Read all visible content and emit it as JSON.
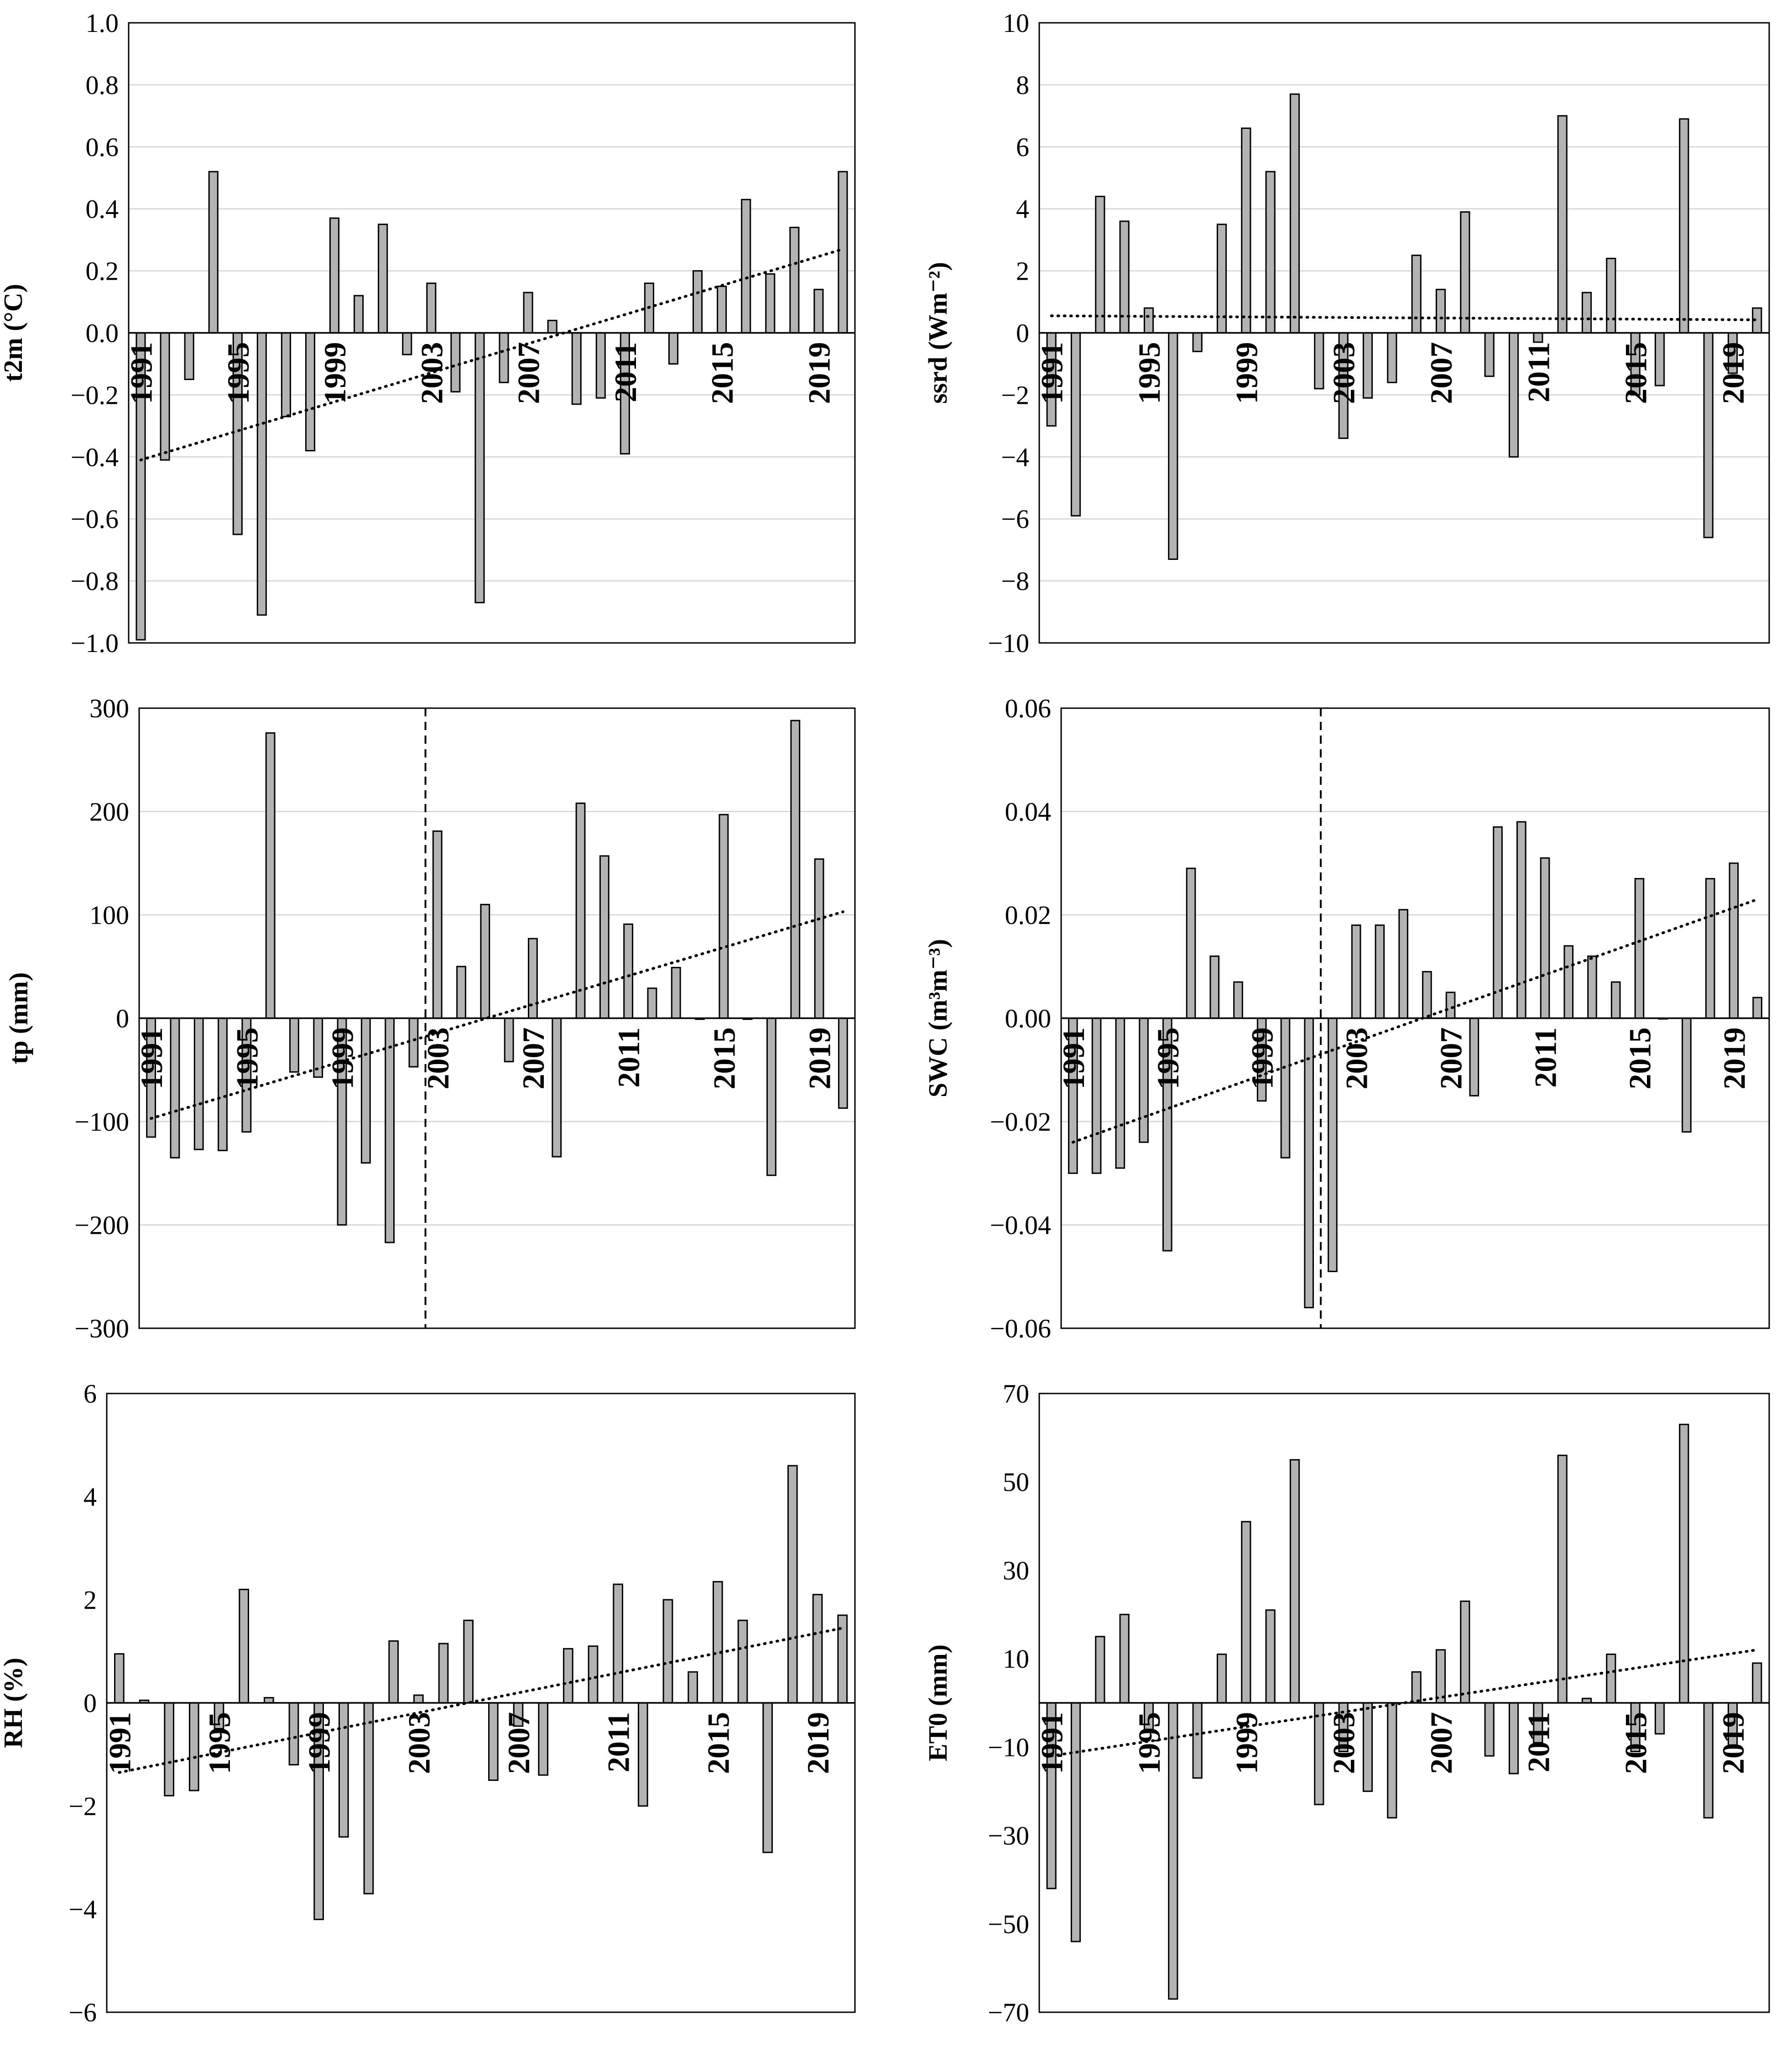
{
  "figure": {
    "colors": {
      "bar_fill": "#b3b3b3",
      "bar_stroke": "#000000",
      "gridline": "#d9d9d9",
      "frame": "#000000",
      "trend": "#000000"
    }
  },
  "chart_data": [
    {
      "id": "t2m",
      "type": "bar",
      "ylabel": "t2m (°C)",
      "ylim": [
        -1.0,
        1.0
      ],
      "yticks": [
        -1.0,
        -0.8,
        -0.6,
        -0.4,
        -0.2,
        0.0,
        0.2,
        0.4,
        0.6,
        0.8,
        1.0
      ],
      "ytick_labels": [
        "−1.0",
        "−0.8",
        "−0.6",
        "−0.4",
        "−0.2",
        "0.0",
        "0.2",
        "0.4",
        "0.6",
        "0.8",
        "1.0"
      ],
      "grid": true,
      "x": [
        1991,
        1992,
        1993,
        1994,
        1995,
        1996,
        1997,
        1998,
        1999,
        2000,
        2001,
        2002,
        2003,
        2004,
        2005,
        2006,
        2007,
        2008,
        2009,
        2010,
        2011,
        2012,
        2013,
        2014,
        2015,
        2016,
        2017,
        2018,
        2019,
        2020
      ],
      "x_tick_labels": [
        "1991",
        "1995",
        "1999",
        "2003",
        "2007",
        "2011",
        "2015",
        "2019"
      ],
      "x_tick_years": [
        1991,
        1995,
        1999,
        2003,
        2007,
        2011,
        2015,
        2019
      ],
      "values": [
        -0.99,
        -0.41,
        -0.15,
        0.52,
        -0.65,
        -0.91,
        -0.27,
        -0.38,
        0.37,
        0.12,
        0.35,
        -0.07,
        0.16,
        -0.19,
        -0.87,
        -0.16,
        0.13,
        0.04,
        -0.23,
        -0.21,
        -0.39,
        0.16,
        -0.1,
        0.2,
        0.15,
        0.43,
        0.19,
        0.34,
        0.14,
        0.52
      ],
      "trend": [
        -0.41,
        0.27
      ]
    },
    {
      "id": "ssrd",
      "type": "bar",
      "ylabel": "ssrd (Wm⁻²)",
      "ylim": [
        -10,
        10
      ],
      "yticks": [
        -10,
        -8,
        -6,
        -4,
        -2,
        0,
        2,
        4,
        6,
        8,
        10
      ],
      "ytick_labels": [
        "−10",
        "−8",
        "−6",
        "−4",
        "−2",
        "0",
        "2",
        "4",
        "6",
        "8",
        "10"
      ],
      "grid": true,
      "x": [
        1991,
        1992,
        1993,
        1994,
        1995,
        1996,
        1997,
        1998,
        1999,
        2000,
        2001,
        2002,
        2003,
        2004,
        2005,
        2006,
        2007,
        2008,
        2009,
        2010,
        2011,
        2012,
        2013,
        2014,
        2015,
        2016,
        2017,
        2018,
        2019,
        2020
      ],
      "x_tick_labels": [
        "1991",
        "1995",
        "1999",
        "2003",
        "2007",
        "2011",
        "2015",
        "2019"
      ],
      "x_tick_years": [
        1991,
        1995,
        1999,
        2003,
        2007,
        2011,
        2015,
        2019
      ],
      "values": [
        -3.0,
        -5.9,
        4.4,
        3.6,
        0.8,
        -7.3,
        -0.6,
        3.5,
        6.6,
        5.2,
        7.7,
        -1.8,
        -3.4,
        -2.1,
        -1.6,
        2.5,
        1.4,
        3.9,
        -1.4,
        -4.0,
        -0.3,
        7.0,
        1.3,
        2.4,
        -2.0,
        -1.7,
        6.9,
        -6.6,
        -1.3,
        0.8
      ],
      "trend": [
        0.55,
        0.42
      ]
    },
    {
      "id": "tp",
      "type": "bar",
      "ylabel": "tp (mm)",
      "ylim": [
        -300,
        300
      ],
      "yticks": [
        -300,
        -200,
        -100,
        0,
        100,
        200,
        300
      ],
      "ytick_labels": [
        "−300",
        "−200",
        "−100",
        "0",
        "100",
        "200",
        "300"
      ],
      "grid": true,
      "x": [
        1991,
        1992,
        1993,
        1994,
        1995,
        1996,
        1997,
        1998,
        1999,
        2000,
        2001,
        2002,
        2003,
        2004,
        2005,
        2006,
        2007,
        2008,
        2009,
        2010,
        2011,
        2012,
        2013,
        2014,
        2015,
        2016,
        2017,
        2018,
        2019,
        2020
      ],
      "x_tick_labels": [
        "1991",
        "1995",
        "1999",
        "2003",
        "2007",
        "2011",
        "2015",
        "2019"
      ],
      "x_tick_years": [
        1991,
        1995,
        1999,
        2003,
        2007,
        2011,
        2015,
        2019
      ],
      "values": [
        -115,
        -135,
        -127,
        -128,
        -110,
        276,
        -52,
        -57,
        -200,
        -140,
        -217,
        -47,
        181,
        50,
        110,
        -42,
        77,
        -134,
        208,
        157,
        91,
        29,
        49,
        -1,
        197,
        -1,
        -152,
        288,
        154,
        -87
      ],
      "trend": [
        -97,
        103
      ],
      "breakpoint_year": 2002.5
    },
    {
      "id": "swc",
      "type": "bar",
      "ylabel": "SWC (m³m⁻³)",
      "ylim": [
        -0.06,
        0.06
      ],
      "yticks": [
        -0.06,
        -0.04,
        -0.02,
        0.0,
        0.02,
        0.04,
        0.06
      ],
      "ytick_labels": [
        "−0.06",
        "−0.04",
        "−0.02",
        "0.00",
        "0.02",
        "0.04",
        "0.06"
      ],
      "grid": true,
      "x": [
        1991,
        1992,
        1993,
        1994,
        1995,
        1996,
        1997,
        1998,
        1999,
        2000,
        2001,
        2002,
        2003,
        2004,
        2005,
        2006,
        2007,
        2008,
        2009,
        2010,
        2011,
        2012,
        2013,
        2014,
        2015,
        2016,
        2017,
        2018,
        2019,
        2020
      ],
      "x_tick_labels": [
        "1991",
        "1995",
        "1999",
        "2003",
        "2007",
        "2011",
        "2015",
        "2019"
      ],
      "x_tick_years": [
        1991,
        1995,
        1999,
        2003,
        2007,
        2011,
        2015,
        2019
      ],
      "values": [
        -0.03,
        -0.03,
        -0.029,
        -0.024,
        -0.045,
        0.029,
        0.012,
        0.007,
        -0.016,
        -0.027,
        -0.056,
        -0.049,
        0.018,
        0.018,
        0.021,
        0.009,
        0.005,
        -0.015,
        0.037,
        0.038,
        0.031,
        0.014,
        0.012,
        0.007,
        0.027,
        0.0,
        -0.022,
        0.027,
        0.03,
        0.004
      ],
      "trend": [
        -0.024,
        0.023
      ],
      "breakpoint_year": 2001.5
    },
    {
      "id": "rh",
      "type": "bar",
      "ylabel": "RH (%)",
      "ylim": [
        -6,
        6
      ],
      "yticks": [
        -6,
        -4,
        -2,
        0,
        2,
        4,
        6
      ],
      "ytick_labels": [
        "−6",
        "−4",
        "−2",
        "0",
        "2",
        "4",
        "6"
      ],
      "grid": false,
      "x": [
        1991,
        1992,
        1993,
        1994,
        1995,
        1996,
        1997,
        1998,
        1999,
        2000,
        2001,
        2002,
        2003,
        2004,
        2005,
        2006,
        2007,
        2008,
        2009,
        2010,
        2011,
        2012,
        2013,
        2014,
        2015,
        2016,
        2017,
        2018,
        2019,
        2020
      ],
      "x_tick_labels": [
        "1991",
        "1995",
        "1999",
        "2003",
        "2007",
        "2011",
        "2015",
        "2019"
      ],
      "x_tick_years": [
        1991,
        1995,
        1999,
        2003,
        2007,
        2011,
        2015,
        2019
      ],
      "values": [
        0.95,
        0.05,
        -1.8,
        -1.7,
        -0.5,
        2.2,
        0.1,
        -1.2,
        -4.2,
        -2.6,
        -3.7,
        1.2,
        0.15,
        1.15,
        1.6,
        -1.5,
        -0.45,
        -1.4,
        1.05,
        1.1,
        2.3,
        -2.0,
        2.0,
        0.6,
        2.35,
        1.6,
        -2.9,
        4.6,
        2.1,
        1.7
      ],
      "trend": [
        -1.35,
        1.45
      ]
    },
    {
      "id": "et0",
      "type": "bar",
      "ylabel": "ET0 (mm)",
      "ylim": [
        -70,
        70
      ],
      "yticks": [
        -70,
        -50,
        -30,
        -10,
        10,
        30,
        50,
        70
      ],
      "ytick_labels": [
        "−70",
        "−50",
        "−30",
        "−10",
        "10",
        "30",
        "50",
        "70"
      ],
      "grid": false,
      "x": [
        1991,
        1992,
        1993,
        1994,
        1995,
        1996,
        1997,
        1998,
        1999,
        2000,
        2001,
        2002,
        2003,
        2004,
        2005,
        2006,
        2007,
        2008,
        2009,
        2010,
        2011,
        2012,
        2013,
        2014,
        2015,
        2016,
        2017,
        2018,
        2019,
        2020
      ],
      "x_tick_labels": [
        "1991",
        "1995",
        "1999",
        "2003",
        "2007",
        "2011",
        "2015",
        "2019"
      ],
      "x_tick_years": [
        1991,
        1995,
        1999,
        2003,
        2007,
        2011,
        2015,
        2019
      ],
      "values": [
        -42,
        -54,
        15,
        20,
        -6,
        -67,
        -17,
        11,
        41,
        21,
        55,
        -23,
        -11,
        -20,
        -26,
        7,
        12,
        23,
        -12,
        -16,
        -9,
        56,
        1,
        11,
        -11,
        -7,
        63,
        -26,
        -10,
        9
      ],
      "trend": [
        -12,
        12
      ]
    }
  ]
}
